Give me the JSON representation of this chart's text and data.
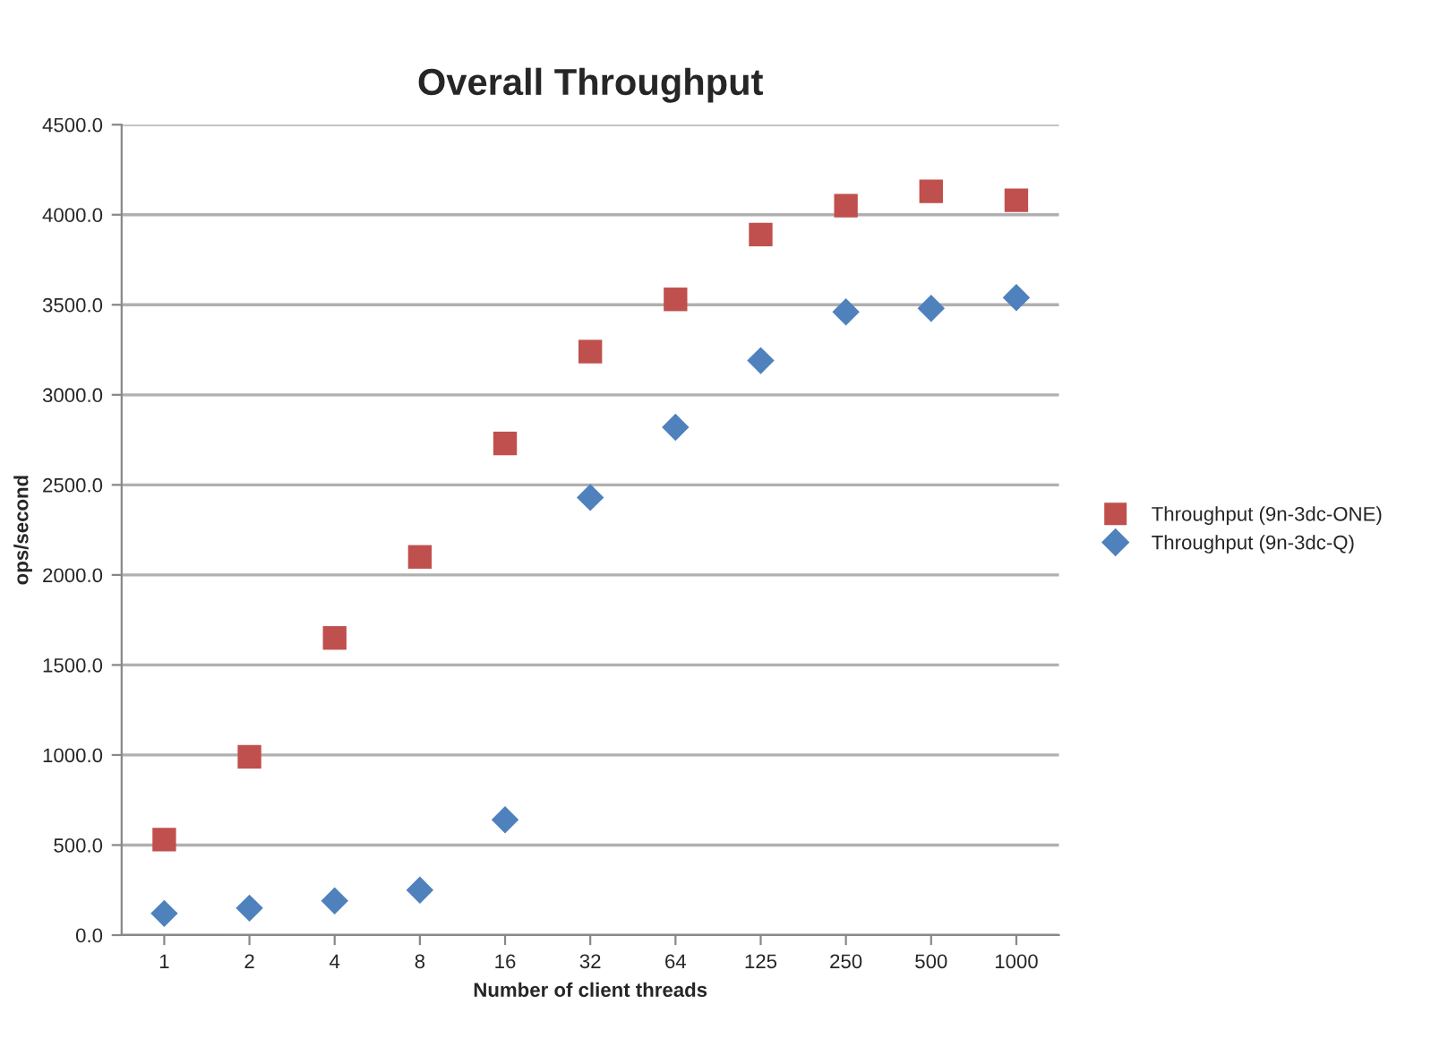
{
  "chart_data": {
    "type": "scatter",
    "title": "Overall Throughput",
    "xlabel": "Number of client threads",
    "ylabel": "ops/second",
    "categories": [
      "1",
      "2",
      "4",
      "8",
      "16",
      "32",
      "64",
      "125",
      "250",
      "500",
      "1000"
    ],
    "series": [
      {
        "name": "Throughput (9n-3dc-ONE)",
        "color": "#c0504d",
        "marker": "square",
        "values": [
          530,
          990,
          1650,
          2100,
          2730,
          3240,
          3530,
          3890,
          4050,
          4130,
          4080
        ]
      },
      {
        "name": "Throughput (9n-3dc-Q)",
        "color": "#4f81bd",
        "marker": "diamond",
        "values": [
          120,
          150,
          190,
          250,
          640,
          2430,
          2820,
          3190,
          3460,
          3480,
          3540
        ]
      }
    ],
    "ylim": [
      0,
      4500
    ],
    "yticks": [
      {
        "value": 0,
        "label": "0.0"
      },
      {
        "value": 500,
        "label": "500.0"
      },
      {
        "value": 1000,
        "label": "1000.0"
      },
      {
        "value": 1500,
        "label": "1500.0"
      },
      {
        "value": 2000,
        "label": "2000.0"
      },
      {
        "value": 2500,
        "label": "2500.0"
      },
      {
        "value": 3000,
        "label": "3000.0"
      },
      {
        "value": 3500,
        "label": "3500.0"
      },
      {
        "value": 4000,
        "label": "4000.0"
      },
      {
        "value": 4500,
        "label": "4500.0"
      }
    ],
    "grid": "y",
    "legend": "right"
  }
}
